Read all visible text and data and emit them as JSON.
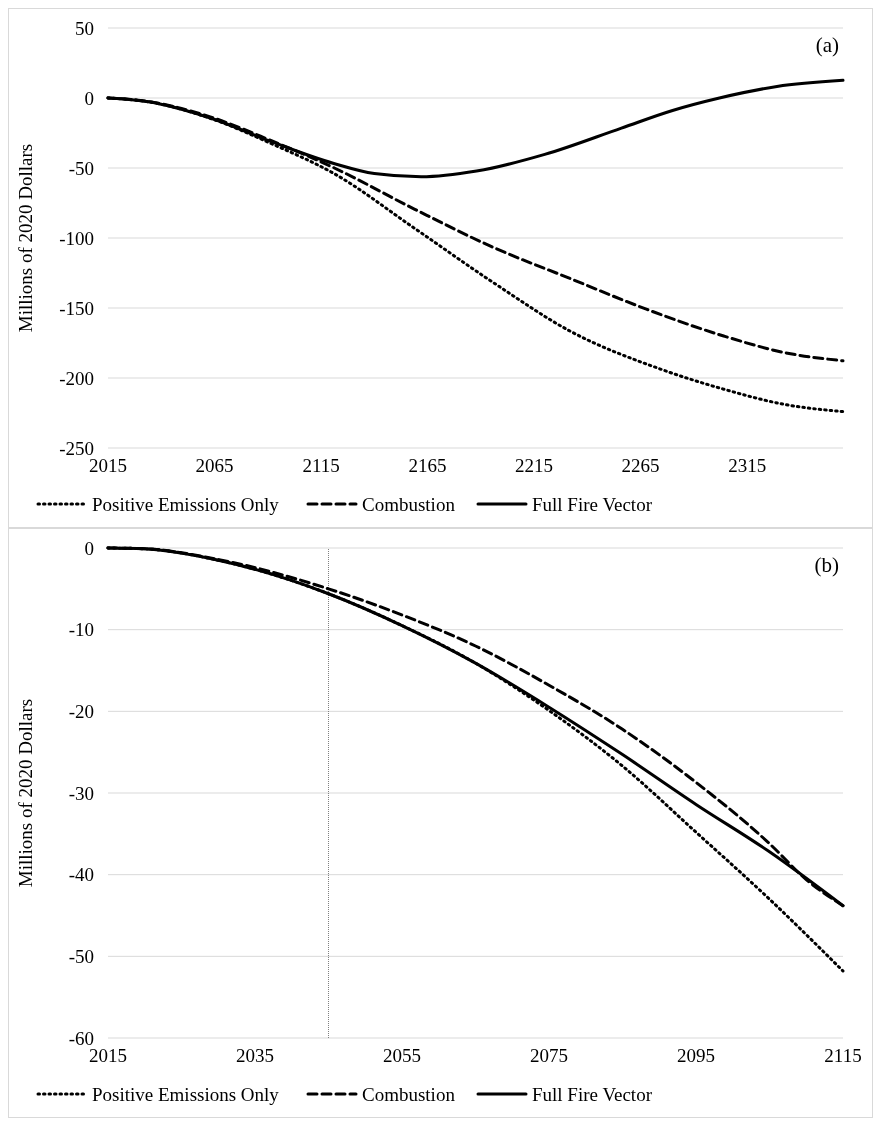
{
  "chart_data": [
    {
      "type": "line",
      "ylabel": "Millions of 2020 Dollars",
      "annotations": [
        "(a)"
      ],
      "xlim": [
        2015,
        2360
      ],
      "xticks": [
        2015,
        2065,
        2115,
        2165,
        2215,
        2265,
        2315
      ],
      "ylim": [
        -250,
        50
      ],
      "yticks": [
        -250,
        -200,
        -150,
        -100,
        -50,
        0,
        50
      ],
      "grid": "y",
      "legend": "bottom",
      "marker": "none",
      "series": [
        {
          "name": "Positive Emissions Only",
          "color": "#000000",
          "line_style": "dotted",
          "x": [
            2015,
            2034,
            2063,
            2092,
            2121,
            2159,
            2196,
            2232,
            2275,
            2304,
            2333,
            2360
          ],
          "values": [
            0,
            -2.7,
            -14.5,
            -32.8,
            -53.9,
            -93.2,
            -132,
            -166.6,
            -194,
            -208,
            -219,
            -224
          ]
        },
        {
          "name": "Combustion",
          "color": "#000000",
          "line_style": "dashed",
          "x": [
            2015,
            2034,
            2063,
            2092,
            2121,
            2159,
            2196,
            2232,
            2268,
            2304,
            2333,
            2360
          ],
          "values": [
            0,
            -2.5,
            -13.5,
            -30.7,
            -49.8,
            -79.5,
            -106.8,
            -129,
            -151,
            -170,
            -182,
            -187.7
          ]
        },
        {
          "name": "Full Fire Vector",
          "color": "#000000",
          "line_style": "solid",
          "x": [
            2015,
            2034,
            2063,
            2092,
            2121,
            2140,
            2162,
            2188,
            2220,
            2256,
            2280,
            2302,
            2329,
            2360
          ],
          "values": [
            0,
            -2.7,
            -14.3,
            -31.4,
            -46.8,
            -54,
            -56.3,
            -52.2,
            -40.3,
            -21.5,
            -8.9,
            0,
            8.2,
            12.6
          ]
        }
      ]
    },
    {
      "type": "line",
      "ylabel": "Millions of 2020 Dollars",
      "annotations": [
        "(b)"
      ],
      "xlim": [
        2015,
        2115
      ],
      "xticks": [
        2015,
        2035,
        2055,
        2075,
        2095,
        2115
      ],
      "ylim": [
        -60,
        0
      ],
      "yticks": [
        -60,
        -50,
        -40,
        -30,
        -20,
        -10,
        0
      ],
      "grid": "y",
      "legend": "bottom",
      "marker": "none",
      "ref_lines": [
        {
          "axis": "x",
          "value": 2045,
          "color": "#808080",
          "line_style": "dotted"
        }
      ],
      "series": [
        {
          "name": "Positive Emissions Only",
          "color": "#000000",
          "line_style": "dotted",
          "x": [
            2015,
            2020,
            2030,
            2045,
            2055,
            2065,
            2075,
            2085,
            2095,
            2105,
            2115
          ],
          "values": [
            0,
            -0.1,
            -1.5,
            -5.6,
            -9.5,
            -14.1,
            -19.9,
            -26.7,
            -34.8,
            -43,
            -51.8
          ]
        },
        {
          "name": "Combustion",
          "color": "#000000",
          "line_style": "dashed",
          "x": [
            2015,
            2020,
            2030,
            2045,
            2055,
            2065,
            2075,
            2085,
            2095,
            2105,
            2110,
            2115
          ],
          "values": [
            0,
            -0.1,
            -1.4,
            -5,
            -8.2,
            -12,
            -16.8,
            -22.2,
            -28.7,
            -36.2,
            -40.6,
            -43.8
          ]
        },
        {
          "name": "Full Fire Vector",
          "color": "#000000",
          "line_style": "solid",
          "x": [
            2015,
            2020,
            2030,
            2045,
            2055,
            2065,
            2075,
            2085,
            2095,
            2105,
            2115
          ],
          "values": [
            0,
            -0.1,
            -1.5,
            -5.6,
            -9.5,
            -14.1,
            -19.5,
            -25.3,
            -31.4,
            -37.2,
            -43.8
          ]
        }
      ]
    }
  ]
}
